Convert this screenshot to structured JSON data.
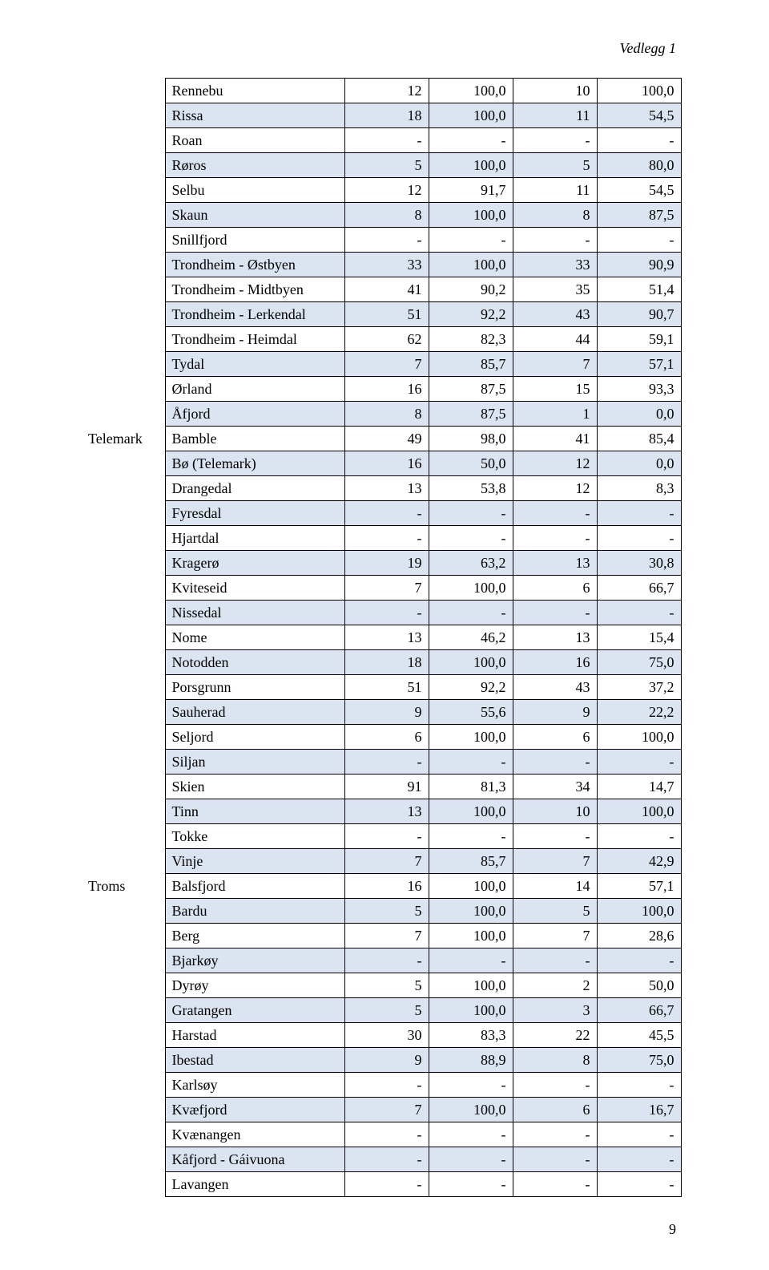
{
  "document": {
    "header_right": "Vedlegg 1",
    "page_number": "9"
  },
  "table": {
    "columns": {
      "label_width": 96,
      "name_width": 224,
      "num_width": 105
    },
    "row_background_alt": "#dbe4f1",
    "border_color": "#000000",
    "font_size": 18,
    "rows": [
      {
        "label": "",
        "name": "Rennebu",
        "c1": "12",
        "c2": "100,0",
        "c3": "10",
        "c4": "100,0"
      },
      {
        "label": "",
        "name": "Rissa",
        "c1": "18",
        "c2": "100,0",
        "c3": "11",
        "c4": "54,5"
      },
      {
        "label": "",
        "name": "Roan",
        "c1": "-",
        "c2": "-",
        "c3": "-",
        "c4": "-"
      },
      {
        "label": "",
        "name": "Røros",
        "c1": "5",
        "c2": "100,0",
        "c3": "5",
        "c4": "80,0"
      },
      {
        "label": "",
        "name": "Selbu",
        "c1": "12",
        "c2": "91,7",
        "c3": "11",
        "c4": "54,5"
      },
      {
        "label": "",
        "name": "Skaun",
        "c1": "8",
        "c2": "100,0",
        "c3": "8",
        "c4": "87,5"
      },
      {
        "label": "",
        "name": "Snillfjord",
        "c1": "-",
        "c2": "-",
        "c3": "-",
        "c4": "-"
      },
      {
        "label": "",
        "name": "Trondheim - Østbyen",
        "c1": "33",
        "c2": "100,0",
        "c3": "33",
        "c4": "90,9"
      },
      {
        "label": "",
        "name": "Trondheim - Midtbyen",
        "c1": "41",
        "c2": "90,2",
        "c3": "35",
        "c4": "51,4"
      },
      {
        "label": "",
        "name": "Trondheim - Lerkendal",
        "c1": "51",
        "c2": "92,2",
        "c3": "43",
        "c4": "90,7"
      },
      {
        "label": "",
        "name": "Trondheim - Heimdal",
        "c1": "62",
        "c2": "82,3",
        "c3": "44",
        "c4": "59,1"
      },
      {
        "label": "",
        "name": "Tydal",
        "c1": "7",
        "c2": "85,7",
        "c3": "7",
        "c4": "57,1"
      },
      {
        "label": "",
        "name": "Ørland",
        "c1": "16",
        "c2": "87,5",
        "c3": "15",
        "c4": "93,3"
      },
      {
        "label": "",
        "name": "Åfjord",
        "c1": "8",
        "c2": "87,5",
        "c3": "1",
        "c4": "0,0"
      },
      {
        "label": "Telemark",
        "name": "Bamble",
        "c1": "49",
        "c2": "98,0",
        "c3": "41",
        "c4": "85,4"
      },
      {
        "label": "",
        "name": "Bø (Telemark)",
        "c1": "16",
        "c2": "50,0",
        "c3": "12",
        "c4": "0,0"
      },
      {
        "label": "",
        "name": "Drangedal",
        "c1": "13",
        "c2": "53,8",
        "c3": "12",
        "c4": "8,3"
      },
      {
        "label": "",
        "name": "Fyresdal",
        "c1": "-",
        "c2": "-",
        "c3": "-",
        "c4": "-"
      },
      {
        "label": "",
        "name": "Hjartdal",
        "c1": "-",
        "c2": "-",
        "c3": "-",
        "c4": "-"
      },
      {
        "label": "",
        "name": "Kragerø",
        "c1": "19",
        "c2": "63,2",
        "c3": "13",
        "c4": "30,8"
      },
      {
        "label": "",
        "name": "Kviteseid",
        "c1": "7",
        "c2": "100,0",
        "c3": "6",
        "c4": "66,7"
      },
      {
        "label": "",
        "name": "Nissedal",
        "c1": "-",
        "c2": "-",
        "c3": "-",
        "c4": "-"
      },
      {
        "label": "",
        "name": "Nome",
        "c1": "13",
        "c2": "46,2",
        "c3": "13",
        "c4": "15,4"
      },
      {
        "label": "",
        "name": "Notodden",
        "c1": "18",
        "c2": "100,0",
        "c3": "16",
        "c4": "75,0"
      },
      {
        "label": "",
        "name": "Porsgrunn",
        "c1": "51",
        "c2": "92,2",
        "c3": "43",
        "c4": "37,2"
      },
      {
        "label": "",
        "name": "Sauherad",
        "c1": "9",
        "c2": "55,6",
        "c3": "9",
        "c4": "22,2"
      },
      {
        "label": "",
        "name": "Seljord",
        "c1": "6",
        "c2": "100,0",
        "c3": "6",
        "c4": "100,0"
      },
      {
        "label": "",
        "name": "Siljan",
        "c1": "-",
        "c2": "-",
        "c3": "-",
        "c4": "-"
      },
      {
        "label": "",
        "name": "Skien",
        "c1": "91",
        "c2": "81,3",
        "c3": "34",
        "c4": "14,7"
      },
      {
        "label": "",
        "name": "Tinn",
        "c1": "13",
        "c2": "100,0",
        "c3": "10",
        "c4": "100,0"
      },
      {
        "label": "",
        "name": "Tokke",
        "c1": "-",
        "c2": "-",
        "c3": "-",
        "c4": "-"
      },
      {
        "label": "",
        "name": "Vinje",
        "c1": "7",
        "c2": "85,7",
        "c3": "7",
        "c4": "42,9"
      },
      {
        "label": "Troms",
        "name": "Balsfjord",
        "c1": "16",
        "c2": "100,0",
        "c3": "14",
        "c4": "57,1"
      },
      {
        "label": "",
        "name": "Bardu",
        "c1": "5",
        "c2": "100,0",
        "c3": "5",
        "c4": "100,0"
      },
      {
        "label": "",
        "name": "Berg",
        "c1": "7",
        "c2": "100,0",
        "c3": "7",
        "c4": "28,6"
      },
      {
        "label": "",
        "name": "Bjarkøy",
        "c1": "-",
        "c2": "-",
        "c3": "-",
        "c4": "-"
      },
      {
        "label": "",
        "name": "Dyrøy",
        "c1": "5",
        "c2": "100,0",
        "c3": "2",
        "c4": "50,0"
      },
      {
        "label": "",
        "name": "Gratangen",
        "c1": "5",
        "c2": "100,0",
        "c3": "3",
        "c4": "66,7"
      },
      {
        "label": "",
        "name": "Harstad",
        "c1": "30",
        "c2": "83,3",
        "c3": "22",
        "c4": "45,5"
      },
      {
        "label": "",
        "name": "Ibestad",
        "c1": "9",
        "c2": "88,9",
        "c3": "8",
        "c4": "75,0"
      },
      {
        "label": "",
        "name": "Karlsøy",
        "c1": "-",
        "c2": "-",
        "c3": "-",
        "c4": "-"
      },
      {
        "label": "",
        "name": "Kvæfjord",
        "c1": "7",
        "c2": "100,0",
        "c3": "6",
        "c4": "16,7"
      },
      {
        "label": "",
        "name": "Kvænangen",
        "c1": "-",
        "c2": "-",
        "c3": "-",
        "c4": "-"
      },
      {
        "label": "",
        "name": "Kåfjord - Gáivuona",
        "c1": "-",
        "c2": "-",
        "c3": "-",
        "c4": "-"
      },
      {
        "label": "",
        "name": "Lavangen",
        "c1": "-",
        "c2": "-",
        "c3": "-",
        "c4": "-"
      }
    ]
  }
}
